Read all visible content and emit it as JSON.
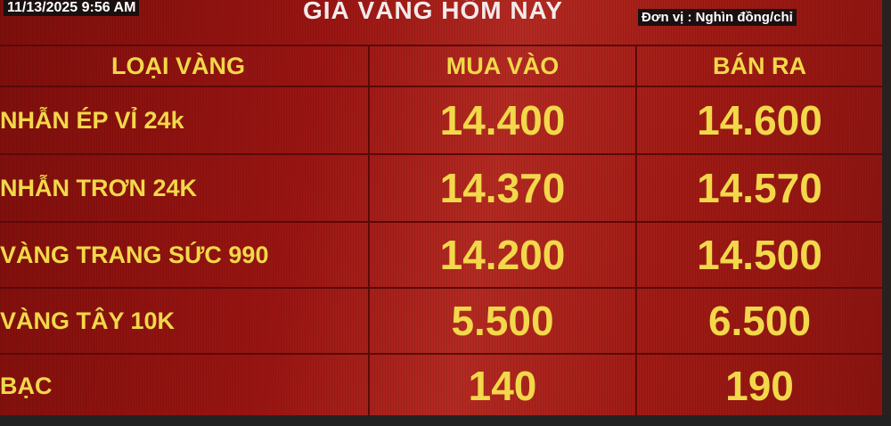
{
  "header": {
    "timestamp": "11/13/2025 9:56 AM",
    "title": "GIÁ VÀNG HÔM NAY",
    "unit": "Đơn vị : Nghìn đồng/chỉ"
  },
  "columns": [
    "LOẠI VÀNG",
    "MUA VÀO",
    "BÁN RA"
  ],
  "rows": [
    {
      "type": "NHẪN ÉP VỈ 24k",
      "buy": "14.400",
      "sell": "14.600"
    },
    {
      "type": "NHẪN TRƠN 24K",
      "buy": "14.370",
      "sell": "14.570"
    },
    {
      "type": "VÀNG TRANG SỨC 990",
      "buy": "14.200",
      "sell": "14.500"
    },
    {
      "type": "VÀNG TÂY 10K",
      "buy": "5.500",
      "sell": "6.500"
    },
    {
      "type": "BẠC",
      "buy": "140",
      "sell": "190"
    }
  ],
  "colors": {
    "background": "#9a1512",
    "text": "#f2d84a"
  }
}
